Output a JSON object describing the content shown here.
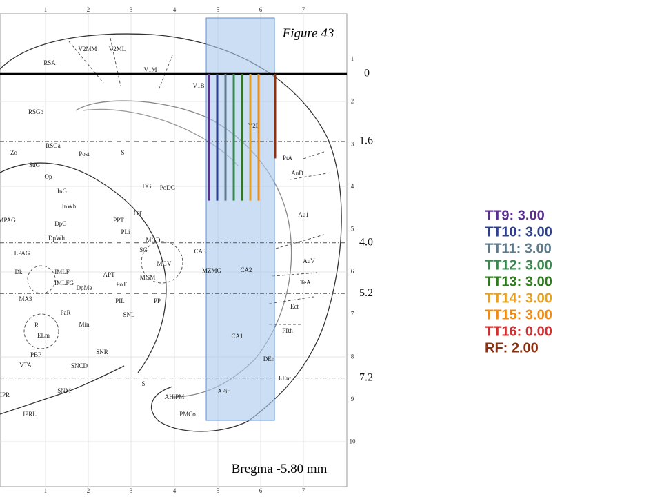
{
  "figure_title": "Figure 43",
  "bregma": "Bregma -5.80 mm",
  "top_ruler": [
    1,
    2,
    3,
    4,
    5,
    6,
    7
  ],
  "right_ruler": [
    1,
    2,
    3,
    4,
    5,
    6,
    7,
    8,
    9,
    10
  ],
  "depth_lines": [
    0,
    {
      "value": 1.6,
      "label": "1.6"
    },
    {
      "value": 4,
      "label": "4.0"
    },
    {
      "value": 5.2,
      "label": "5.2"
    },
    {
      "value": 7.2,
      "label": "7.2"
    }
  ],
  "electrodes": [
    {
      "label": "TT9: 3.00",
      "depth": 3,
      "color": "#5b2d8e"
    },
    {
      "label": "TT10: 3.00",
      "depth": 3,
      "color": "#2e3f8f"
    },
    {
      "label": "TT11: 3.00",
      "depth": 3,
      "color": "#5f7a8a"
    },
    {
      "label": "TT12: 3.00",
      "depth": 3,
      "color": "#3a8a50"
    },
    {
      "label": "TT13: 3.00",
      "depth": 3,
      "color": "#2f7a1f"
    },
    {
      "label": "TT14: 3.00",
      "depth": 3,
      "color": "#e8a020"
    },
    {
      "label": "TT15: 3.00",
      "depth": 3,
      "color": "#f08a10"
    },
    {
      "label": "TT16: 0.00",
      "depth": 0,
      "color": "#d03030"
    },
    {
      "label": "RF: 2.00",
      "depth": 2,
      "color": "#8b3010"
    }
  ],
  "regions": [
    "RSA",
    "V2MM",
    "V2ML",
    "V1M",
    "V1B",
    "RSGb",
    "RSGa",
    "Post",
    "S",
    "Zo",
    "SuG",
    "Op",
    "InG",
    "InWh",
    "DpG",
    "DpWh",
    "MPAG",
    "LPAG",
    "Dk",
    "IMLF",
    "IMLFG",
    "DpMe",
    "MA3",
    "PaR",
    "Min",
    "R",
    "ELm",
    "PBP",
    "VTA",
    "SNCD",
    "SNR",
    "SNM",
    "IPR",
    "IPRL",
    "OT",
    "PPT",
    "PLi",
    "SG",
    "MGD",
    "MGV",
    "MGM",
    "APT",
    "PoT",
    "PIL",
    "PP",
    "SNL",
    "DG",
    "PoDG",
    "CA3",
    "MZMG",
    "CA2",
    "CA1",
    "DEn",
    "APir",
    "AHiPM",
    "PMCo",
    "S",
    "PtA",
    "AuD",
    "Au1",
    "AuV",
    "TeA",
    "Ect",
    "PRh",
    "LEnt",
    "V2L"
  ]
}
